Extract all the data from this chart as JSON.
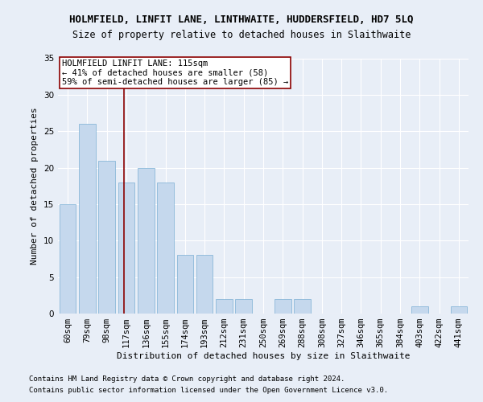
{
  "title": "HOLMFIELD, LINFIT LANE, LINTHWAITE, HUDDERSFIELD, HD7 5LQ",
  "subtitle": "Size of property relative to detached houses in Slaithwaite",
  "xlabel": "Distribution of detached houses by size in Slaithwaite",
  "ylabel": "Number of detached properties",
  "footer1": "Contains HM Land Registry data © Crown copyright and database right 2024.",
  "footer2": "Contains public sector information licensed under the Open Government Licence v3.0.",
  "bin_labels": [
    "60sqm",
    "79sqm",
    "98sqm",
    "117sqm",
    "136sqm",
    "155sqm",
    "174sqm",
    "193sqm",
    "212sqm",
    "231sqm",
    "250sqm",
    "269sqm",
    "288sqm",
    "308sqm",
    "327sqm",
    "346sqm",
    "365sqm",
    "384sqm",
    "403sqm",
    "422sqm",
    "441sqm"
  ],
  "values": [
    15,
    26,
    21,
    18,
    20,
    18,
    8,
    8,
    2,
    2,
    0,
    2,
    2,
    0,
    0,
    0,
    0,
    0,
    1,
    0,
    1
  ],
  "bar_color": "#c5d8ed",
  "bar_edge_color": "#7bafd4",
  "bg_color": "#e8eef7",
  "grid_color": "#ffffff",
  "vline_color": "#8b0000",
  "annotation_text": "HOLMFIELD LINFIT LANE: 115sqm\n← 41% of detached houses are smaller (58)\n59% of semi-detached houses are larger (85) →",
  "annotation_box_color": "#ffffff",
  "annotation_box_edge": "#8b0000",
  "ylim": [
    0,
    35
  ],
  "yticks": [
    0,
    5,
    10,
    15,
    20,
    25,
    30,
    35
  ],
  "title_fontsize": 9,
  "subtitle_fontsize": 8.5,
  "axis_label_fontsize": 8,
  "tick_fontsize": 7.5,
  "annotation_fontsize": 7.5,
  "footer_fontsize": 6.5
}
